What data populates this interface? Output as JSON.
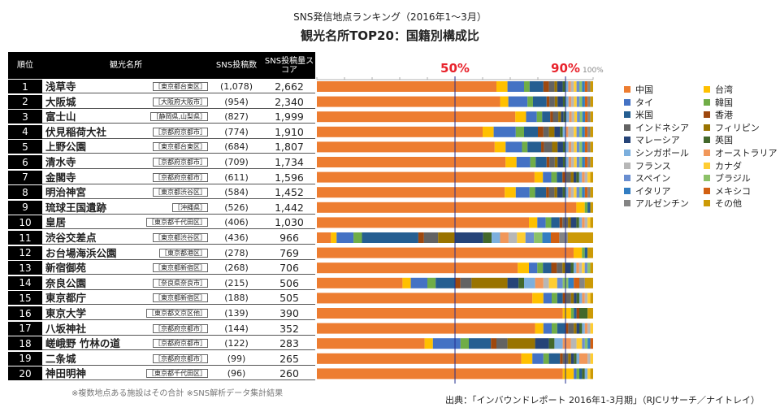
{
  "header": {
    "title_line1": "SNS発信地点ランキング（2016年1～3月）",
    "title_line2": "観光名所TOP20：国籍別構成比"
  },
  "table": {
    "columns": [
      "順位",
      "観光名所",
      "SNS投稿数",
      "SNS投稿量スコア"
    ],
    "rows": [
      {
        "rank": "1",
        "name": "浅草寺",
        "loc": "［東京都台東区］",
        "count": "(1,078)",
        "score": "2,662"
      },
      {
        "rank": "2",
        "name": "大阪城",
        "loc": "［大阪府大阪市］",
        "count": "(954)",
        "score": "2,340"
      },
      {
        "rank": "3",
        "name": "富士山",
        "loc": "［静岡県,山梨県］",
        "count": "(827)",
        "score": "1,999"
      },
      {
        "rank": "4",
        "name": "伏見稲荷大社",
        "loc": "［京都府京都市］",
        "count": "(774)",
        "score": "1,910"
      },
      {
        "rank": "5",
        "name": "上野公園",
        "loc": "［東京都台東区］",
        "count": "(684)",
        "score": "1,807"
      },
      {
        "rank": "6",
        "name": "清水寺",
        "loc": "［京都府京都市］",
        "count": "(709)",
        "score": "1,734"
      },
      {
        "rank": "7",
        "name": "金閣寺",
        "loc": "［京都府京都市］",
        "count": "(611)",
        "score": "1,596"
      },
      {
        "rank": "8",
        "name": "明治神宮",
        "loc": "［東京都渋谷区］",
        "count": "(584)",
        "score": "1,452"
      },
      {
        "rank": "9",
        "name": "琉球王国遺跡",
        "loc": "［沖縄県］",
        "count": "(526)",
        "score": "1,442"
      },
      {
        "rank": "10",
        "name": "皇居",
        "loc": "［東京都千代田区］",
        "count": "(406)",
        "score": "1,030"
      },
      {
        "rank": "11",
        "name": "渋谷交差点",
        "loc": "［東京都渋谷区］",
        "count": "(436)",
        "score": "966"
      },
      {
        "rank": "12",
        "name": "お台場海浜公園",
        "loc": "［東京都港区］",
        "count": "(278)",
        "score": "769"
      },
      {
        "rank": "13",
        "name": "新宿御苑",
        "loc": "［東京都新宿区］",
        "count": "(268)",
        "score": "706"
      },
      {
        "rank": "14",
        "name": "奈良公園",
        "loc": "［奈良県奈良市］",
        "count": "(215)",
        "score": "506"
      },
      {
        "rank": "15",
        "name": "東京都庁",
        "loc": "［東京都新宿区］",
        "count": "(188)",
        "score": "505"
      },
      {
        "rank": "16",
        "name": "東京大学",
        "loc": "［東京都文京区他］",
        "count": "(139)",
        "score": "390"
      },
      {
        "rank": "17",
        "name": "八坂神社",
        "loc": "［京都府京都市］",
        "count": "(144)",
        "score": "352"
      },
      {
        "rank": "18",
        "name": "嵯峨野 竹林の道",
        "loc": "［京都府京都市］",
        "count": "(122)",
        "score": "283"
      },
      {
        "rank": "19",
        "name": "二条城",
        "loc": "［京都府京都市］",
        "count": "(99)",
        "score": "265"
      },
      {
        "rank": "20",
        "name": "神田明神",
        "loc": "［東京都千代田区］",
        "count": "(96)",
        "score": "260"
      }
    ]
  },
  "chart_data": {
    "type": "bar",
    "orientation": "horizontal-stacked-100",
    "xlim": [
      0,
      100
    ],
    "tick_label_100": "100%",
    "reference_lines": [
      {
        "value": 50,
        "label": "50%"
      },
      {
        "value": 90,
        "label": "90%"
      }
    ],
    "legend_position": "right",
    "series": [
      {
        "name": "中国",
        "color": "#ED7D31"
      },
      {
        "name": "台湾",
        "color": "#FFC000"
      },
      {
        "name": "タイ",
        "color": "#4472C4"
      },
      {
        "name": "韓国",
        "color": "#70AD47"
      },
      {
        "name": "米国",
        "color": "#255E91"
      },
      {
        "name": "香港",
        "color": "#9E480E"
      },
      {
        "name": "インドネシア",
        "color": "#636363"
      },
      {
        "name": "フィリピン",
        "color": "#997300"
      },
      {
        "name": "マレーシア",
        "color": "#264478"
      },
      {
        "name": "英国",
        "color": "#43682B"
      },
      {
        "name": "シンガポール",
        "color": "#7CAFDD"
      },
      {
        "name": "オーストラリア",
        "color": "#F1975A"
      },
      {
        "name": "フランス",
        "color": "#B7B7B7"
      },
      {
        "name": "カナダ",
        "color": "#FFCD33"
      },
      {
        "name": "スペイン",
        "color": "#698ED0"
      },
      {
        "name": "ブラジル",
        "color": "#8CC168"
      },
      {
        "name": "イタリア",
        "color": "#327DC2"
      },
      {
        "name": "メキシコ",
        "color": "#D26012"
      },
      {
        "name": "アルゼンチン",
        "color": "#848484"
      },
      {
        "name": "その他",
        "color": "#CC9A06"
      }
    ],
    "rows": [
      [
        65,
        4,
        6,
        2,
        5,
        2,
        2,
        1,
        2,
        1,
        1,
        1,
        1,
        1,
        1,
        1,
        1,
        1,
        1,
        1
      ],
      [
        67,
        3,
        7,
        2,
        5,
        1,
        2,
        1,
        2,
        1,
        1,
        1,
        1,
        1,
        1,
        1,
        1,
        1,
        1,
        1
      ],
      [
        74,
        4,
        4,
        2,
        3,
        1,
        2,
        1,
        1,
        1,
        1,
        1,
        1,
        1,
        1,
        1,
        1,
        1,
        1,
        1
      ],
      [
        60,
        4,
        8,
        3,
        5,
        2,
        2,
        2,
        2,
        1,
        1,
        1,
        2,
        1,
        1,
        1,
        1,
        1,
        1,
        1
      ],
      [
        65,
        4,
        6,
        2,
        5,
        1,
        3,
        2,
        2,
        1,
        1,
        1,
        1,
        1,
        1,
        1,
        1,
        1,
        1,
        1
      ],
      [
        69,
        4,
        5,
        2,
        4,
        1,
        2,
        1,
        2,
        1,
        1,
        1,
        1,
        1,
        1,
        1,
        1,
        1,
        1,
        1
      ],
      [
        78,
        3,
        3,
        2,
        2,
        1,
        2,
        1,
        1,
        1,
        1,
        1,
        1,
        1,
        0,
        0,
        0,
        0,
        0,
        1
      ],
      [
        68,
        4,
        5,
        2,
        4,
        1,
        2,
        1,
        2,
        1,
        1,
        1,
        1,
        1,
        1,
        1,
        1,
        1,
        1,
        1
      ],
      [
        93,
        3,
        0,
        1,
        1,
        0,
        0,
        0,
        0,
        0,
        0,
        0,
        0,
        0,
        0,
        0,
        0,
        0,
        0,
        1
      ],
      [
        76,
        3,
        3,
        2,
        3,
        1,
        2,
        1,
        2,
        1,
        1,
        1,
        1,
        1,
        0,
        0,
        0,
        0,
        0,
        1
      ],
      [
        5,
        2,
        6,
        3,
        20,
        2,
        5,
        6,
        10,
        3,
        3,
        3,
        3,
        3,
        3,
        3,
        3,
        3,
        3,
        9
      ],
      [
        92,
        3,
        0,
        1,
        1,
        0,
        0,
        0,
        0,
        0,
        0,
        0,
        0,
        0,
        0,
        0,
        0,
        0,
        0,
        2
      ],
      [
        72,
        4,
        3,
        2,
        3,
        2,
        2,
        1,
        2,
        1,
        1,
        1,
        1,
        1,
        1,
        1,
        0,
        0,
        0,
        1
      ],
      [
        31,
        3,
        6,
        3,
        7,
        2,
        4,
        13,
        4,
        2,
        4,
        3,
        2,
        3,
        2,
        2,
        2,
        2,
        2,
        3
      ],
      [
        78,
        4,
        3,
        2,
        2,
        1,
        2,
        1,
        1,
        1,
        1,
        1,
        1,
        1,
        0,
        0,
        0,
        0,
        0,
        1
      ],
      [
        89,
        3,
        0,
        1,
        1,
        1,
        0,
        0,
        0,
        3,
        0,
        0,
        0,
        0,
        0,
        0,
        0,
        0,
        0,
        2
      ],
      [
        79,
        3,
        3,
        2,
        3,
        1,
        2,
        1,
        1,
        1,
        1,
        1,
        1,
        1,
        0,
        0,
        0,
        0,
        0,
        0
      ],
      [
        39,
        3,
        10,
        3,
        8,
        2,
        4,
        10,
        5,
        2,
        3,
        3,
        2,
        2,
        1,
        1,
        1,
        1,
        0,
        0
      ],
      [
        74,
        4,
        4,
        2,
        4,
        1,
        2,
        1,
        1,
        1,
        1,
        3,
        1,
        1,
        0,
        0,
        0,
        0,
        0,
        0
      ],
      [
        89,
        4,
        1,
        1,
        1,
        0,
        0,
        0,
        0,
        1,
        1,
        0,
        0,
        1,
        0,
        0,
        0,
        0,
        0,
        1
      ]
    ]
  },
  "footer": {
    "note": "※複数地点ある施設はその合計  ※SNS解析データ集計結果",
    "source": "出典：「インバウンドレポート 2016年1-3月期」（RJCリサーチ／ナイトレイ）"
  }
}
